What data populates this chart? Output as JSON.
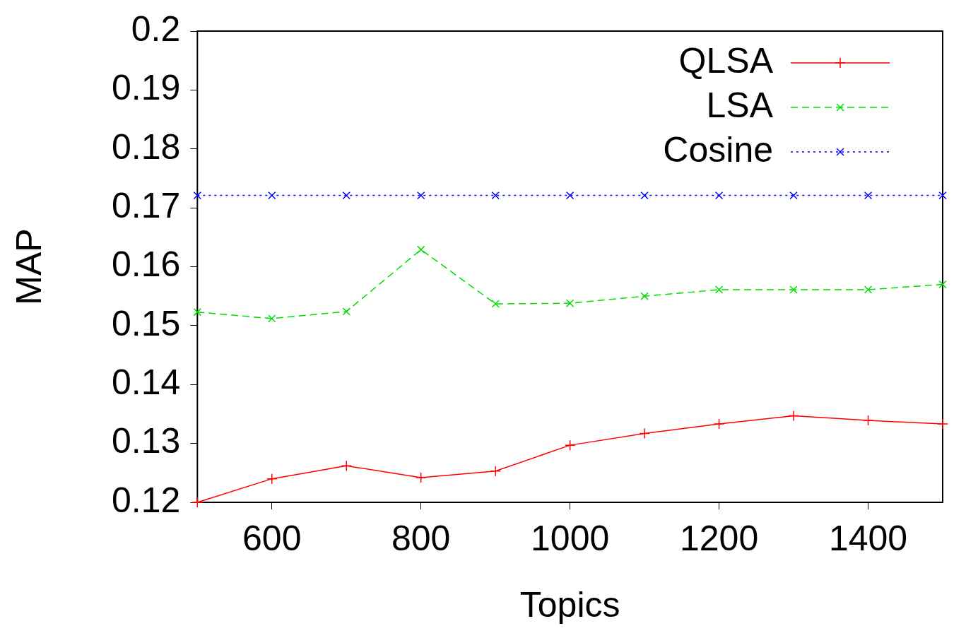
{
  "chart_data": {
    "type": "line",
    "xlabel": "Topics",
    "ylabel": "MAP",
    "x": [
      500,
      600,
      700,
      800,
      900,
      1000,
      1100,
      1200,
      1300,
      1400,
      1500
    ],
    "xlim": [
      500,
      1500
    ],
    "xticks": [
      600,
      800,
      1000,
      1200,
      1400
    ],
    "ylim": [
      0.12,
      0.2
    ],
    "yticks": [
      0.12,
      0.13,
      0.14,
      0.15,
      0.16,
      0.17,
      0.18,
      0.19,
      0.2
    ],
    "grid": false,
    "legend": "top right",
    "series": [
      {
        "name": "QLSA",
        "color": "#ff0000",
        "marker": "plus",
        "line_style": "solid",
        "values": [
          0.12,
          0.124,
          0.1262,
          0.1242,
          0.1253,
          0.1297,
          0.1317,
          0.1333,
          0.1347,
          0.1339,
          0.1333
        ]
      },
      {
        "name": "LSA",
        "color": "#00dd00",
        "marker": "cross",
        "line_style": "dashed",
        "values": [
          0.1523,
          0.1512,
          0.1524,
          0.1629,
          0.1537,
          0.1538,
          0.155,
          0.1561,
          0.1561,
          0.1561,
          0.157
        ]
      },
      {
        "name": "Cosine",
        "color": "#0000ff",
        "marker": "cross",
        "line_style": "dotted",
        "values": [
          0.1721,
          0.1721,
          0.1721,
          0.1721,
          0.1721,
          0.1721,
          0.1721,
          0.1721,
          0.1721,
          0.1721,
          0.1721
        ]
      }
    ]
  }
}
